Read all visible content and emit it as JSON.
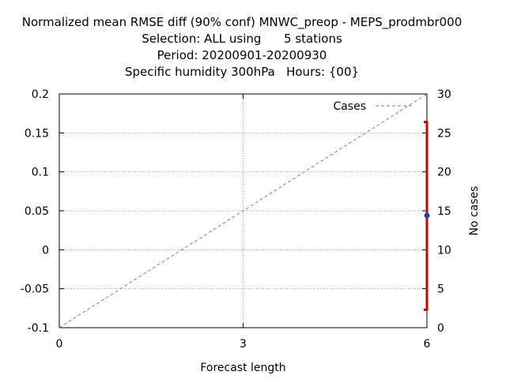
{
  "titles": [
    "Normalized mean RMSE diff (90% conf) MNWC_preop - MEPS_prodmbr000",
    "Selection: ALL using      5 stations",
    "Period: 20200901-20200930",
    "Specific humidity 300hPa   Hours: {00}"
  ],
  "chart_data": {
    "type": "line",
    "xlabel": "Forecast length",
    "ylabel": "",
    "y2label": "No cases",
    "xlim": [
      0,
      6
    ],
    "ylim": [
      -0.1,
      0.2
    ],
    "y2lim": [
      0,
      30
    ],
    "xticks": [
      0,
      3,
      6
    ],
    "yticks": [
      -0.1,
      -0.05,
      0,
      0.05,
      0.1,
      0.15,
      0.2
    ],
    "ytick_labels": [
      "-0.1",
      "-0.05",
      "0",
      "0.05",
      "0.1",
      "0.15",
      "0.2"
    ],
    "y2ticks": [
      0,
      5,
      10,
      15,
      20,
      25,
      30
    ],
    "grid": true,
    "legend": {
      "placement": "top-right",
      "entries": [
        "Cases"
      ]
    },
    "series": [
      {
        "name": "Cases",
        "axis": "y2",
        "style": "dashed",
        "color": "#808080",
        "x": [
          0,
          6
        ],
        "y": [
          0,
          30
        ]
      },
      {
        "axis": "y",
        "style": "point-errorbar",
        "color": "#2040c0",
        "errcolor": "#cc0000",
        "x": [
          6
        ],
        "y": [
          0.044
        ],
        "ylow": [
          -0.077
        ],
        "yhigh": [
          0.164
        ]
      }
    ]
  }
}
